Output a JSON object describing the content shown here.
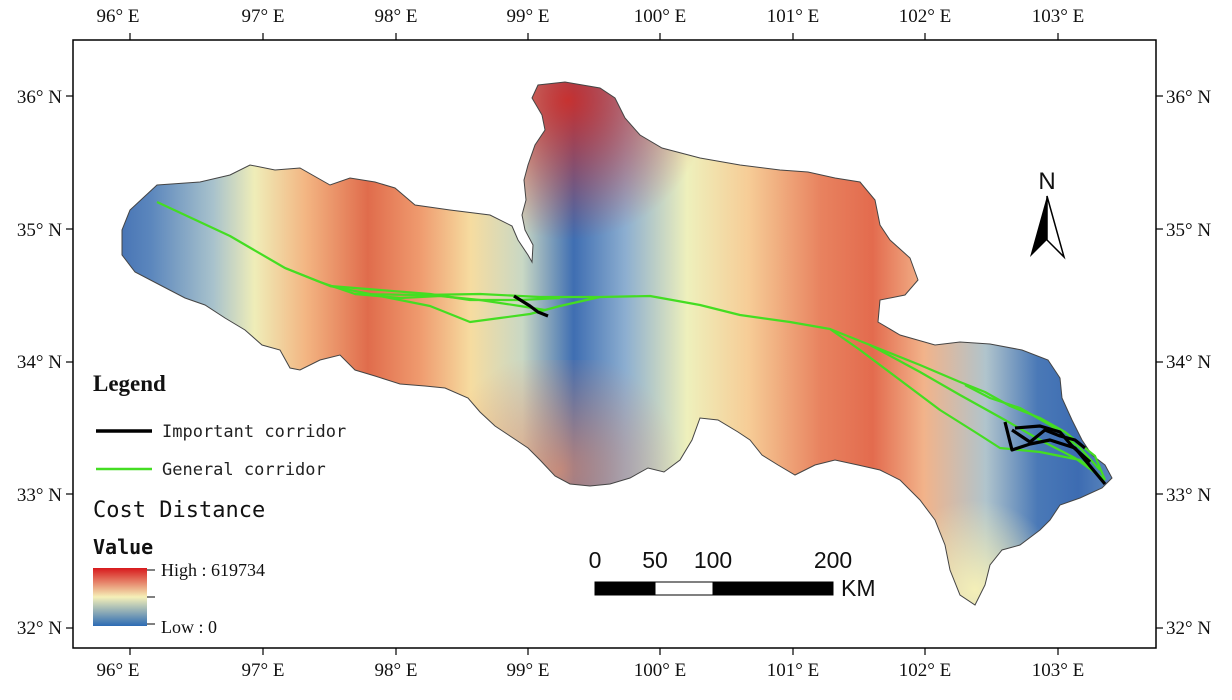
{
  "map": {
    "lon_ticks": [
      "96° E",
      "97° E",
      "98° E",
      "99° E",
      "100° E",
      "101° E",
      "102° E",
      "103° E"
    ],
    "lat_ticks": [
      "36° N",
      "35° N",
      "34° N",
      "33° N",
      "32° N"
    ],
    "north_arrow": {
      "label": "N",
      "icon": "north-arrow-icon"
    }
  },
  "legend": {
    "title": "Legend",
    "items": [
      {
        "label": "Important corridor",
        "color": "#000000"
      },
      {
        "label": "General corridor",
        "color": "#44dd22"
      }
    ],
    "cost_title": "Cost Distance",
    "value_title": "Value",
    "high_label": "High : 619734",
    "low_label": "Low : 0",
    "ramp_colors": [
      "#d7191c",
      "#f5f0b8",
      "#2c6bb4"
    ]
  },
  "scale_bar": {
    "labels": [
      "0",
      "50",
      "100",
      "200"
    ],
    "unit": "KM"
  }
}
